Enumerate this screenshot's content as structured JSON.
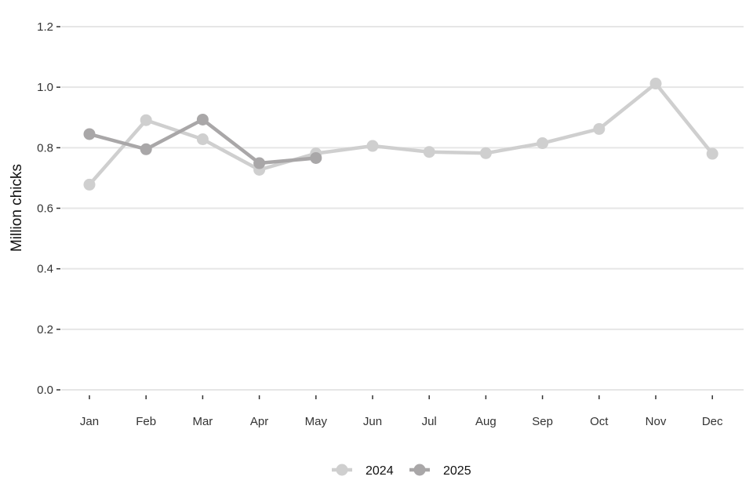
{
  "chart_data": {
    "type": "line",
    "categories": [
      "Jan",
      "Feb",
      "Mar",
      "Apr",
      "May",
      "Jun",
      "Jul",
      "Aug",
      "Sep",
      "Oct",
      "Nov",
      "Dec"
    ],
    "series": [
      {
        "name": "2024",
        "color": "#cfcfcf",
        "values": [
          0.678,
          0.891,
          0.828,
          0.727,
          0.781,
          0.806,
          0.786,
          0.782,
          0.815,
          0.862,
          1.012,
          0.78
        ]
      },
      {
        "name": "2025",
        "color": "#a9a7a8",
        "values": [
          0.845,
          0.795,
          0.893,
          0.749,
          0.766,
          null,
          null,
          null,
          null,
          null,
          null,
          null
        ]
      }
    ],
    "title": "",
    "xlabel": "",
    "ylabel": "Million chicks",
    "ylim": [
      0,
      1.2
    ],
    "yticks": [
      "0.0",
      "0.2",
      "0.4",
      "0.6",
      "0.8",
      "1.0",
      "1.2"
    ],
    "grid": "horizontal",
    "legend_position": "bottom"
  }
}
